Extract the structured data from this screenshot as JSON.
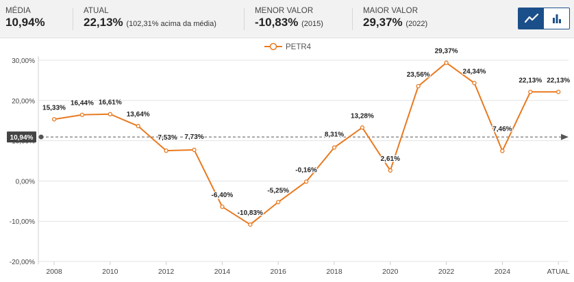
{
  "stats": {
    "media": {
      "label": "MÉDIA",
      "value": "10,94%"
    },
    "atual": {
      "label": "ATUAL",
      "value": "22,13%",
      "note": "(102,31% acima da média)"
    },
    "menor": {
      "label": "MENOR VALOR",
      "value": "-10,83%",
      "note": "(2015)"
    },
    "maior": {
      "label": "MAIOR VALOR",
      "value": "29,37%",
      "note": "(2022)"
    }
  },
  "view_toggle": {
    "options": [
      "line-chart-icon",
      "bar-chart-icon"
    ],
    "active": "line-chart-icon"
  },
  "colors": {
    "line": "#e8791f",
    "grid": "#e3e3e3",
    "avg_tag": "#444444",
    "axis_text": "#444444",
    "toggle": "#1b4f8a"
  },
  "chart_data": {
    "type": "line",
    "categories": [
      "2008",
      "2009",
      "2010",
      "2011",
      "2012",
      "2013",
      "2014",
      "2015",
      "2016",
      "2017",
      "2018",
      "2019",
      "2020",
      "2021",
      "2022",
      "2023",
      "2024",
      "2025",
      "ATUAL"
    ],
    "series": [
      {
        "name": "PETR4",
        "values": [
          15.33,
          16.44,
          16.61,
          13.64,
          7.53,
          7.73,
          -6.4,
          -10.83,
          -5.25,
          -0.16,
          8.31,
          13.28,
          2.61,
          23.56,
          29.37,
          24.34,
          7.46,
          22.13,
          22.13
        ]
      }
    ],
    "data_labels": [
      "15,33%",
      "16,44%",
      "16,61%",
      "13,64%",
      "7,53%",
      "7,73%",
      "-6,40%",
      "-10,83%",
      "-5,25%",
      "-0,16%",
      "8,31%",
      "13,28%",
      "2,61%",
      "23,56%",
      "29,37%",
      "24,34%",
      "7,46%",
      "22,13%",
      "22,13%"
    ],
    "x_tick_labels": [
      "2008",
      "2010",
      "2012",
      "2014",
      "2016",
      "2018",
      "2020",
      "2022",
      "2024",
      "ATUAL"
    ],
    "x_tick_indices": [
      0,
      2,
      4,
      6,
      8,
      10,
      12,
      14,
      16,
      18
    ],
    "y_ticks": [
      30,
      20,
      10,
      0,
      -10,
      -20
    ],
    "y_tick_labels": [
      "30,00%",
      "20,00%",
      "10,00%",
      "0,00%",
      "-10,00%",
      "-20,00%"
    ],
    "ylim": [
      -20,
      30
    ],
    "average": {
      "value": 10.94,
      "label": "10,94%"
    },
    "legend": {
      "label": "PETR4",
      "position": "top-center"
    },
    "title": "",
    "xlabel": "",
    "ylabel": ""
  }
}
